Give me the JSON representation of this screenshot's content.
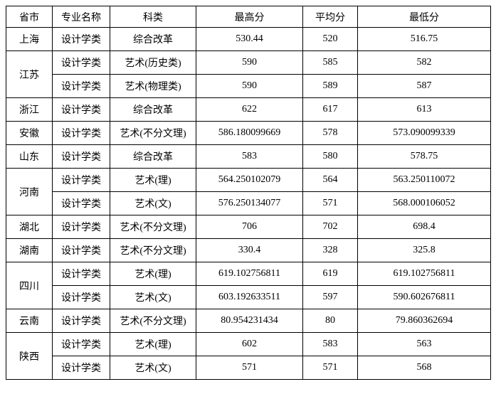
{
  "headers": {
    "province": "省市",
    "major": "专业名称",
    "category": "科类",
    "max": "最高分",
    "avg": "平均分",
    "min": "最低分"
  },
  "rows": [
    {
      "province": "上海",
      "major": "设计学类",
      "category": "综合改革",
      "max": "530.44",
      "avg": "520",
      "min": "516.75",
      "provinceRowspan": 1
    },
    {
      "province": "江苏",
      "major": "设计学类",
      "category": "艺术(历史类)",
      "max": "590",
      "avg": "585",
      "min": "582",
      "provinceRowspan": 2
    },
    {
      "province": "",
      "major": "设计学类",
      "category": "艺术(物理类)",
      "max": "590",
      "avg": "589",
      "min": "587",
      "provinceRowspan": 0
    },
    {
      "province": "浙江",
      "major": "设计学类",
      "category": "综合改革",
      "max": "622",
      "avg": "617",
      "min": "613",
      "provinceRowspan": 1
    },
    {
      "province": "安徽",
      "major": "设计学类",
      "category": "艺术(不分文理)",
      "max": "586.180099669",
      "avg": "578",
      "min": "573.090099339",
      "provinceRowspan": 1
    },
    {
      "province": "山东",
      "major": "设计学类",
      "category": "综合改革",
      "max": "583",
      "avg": "580",
      "min": "578.75",
      "provinceRowspan": 1
    },
    {
      "province": "河南",
      "major": "设计学类",
      "category": "艺术(理)",
      "max": "564.250102079",
      "avg": "564",
      "min": "563.250110072",
      "provinceRowspan": 2
    },
    {
      "province": "",
      "major": "设计学类",
      "category": "艺术(文)",
      "max": "576.250134077",
      "avg": "571",
      "min": "568.000106052",
      "provinceRowspan": 0
    },
    {
      "province": "湖北",
      "major": "设计学类",
      "category": "艺术(不分文理)",
      "max": "706",
      "avg": "702",
      "min": "698.4",
      "provinceRowspan": 1
    },
    {
      "province": "湖南",
      "major": "设计学类",
      "category": "艺术(不分文理)",
      "max": "330.4",
      "avg": "328",
      "min": "325.8",
      "provinceRowspan": 1
    },
    {
      "province": "四川",
      "major": "设计学类",
      "category": "艺术(理)",
      "max": "619.102756811",
      "avg": "619",
      "min": "619.102756811",
      "provinceRowspan": 2
    },
    {
      "province": "",
      "major": "设计学类",
      "category": "艺术(文)",
      "max": "603.192633511",
      "avg": "597",
      "min": "590.602676811",
      "provinceRowspan": 0
    },
    {
      "province": "云南",
      "major": "设计学类",
      "category": "艺术(不分文理)",
      "max": "80.954231434",
      "avg": "80",
      "min": "79.860362694",
      "provinceRowspan": 1
    },
    {
      "province": "陕西",
      "major": "设计学类",
      "category": "艺术(理)",
      "max": "602",
      "avg": "583",
      "min": "563",
      "provinceRowspan": 2
    },
    {
      "province": "",
      "major": "设计学类",
      "category": "艺术(文)",
      "max": "571",
      "avg": "571",
      "min": "568",
      "provinceRowspan": 0
    }
  ]
}
